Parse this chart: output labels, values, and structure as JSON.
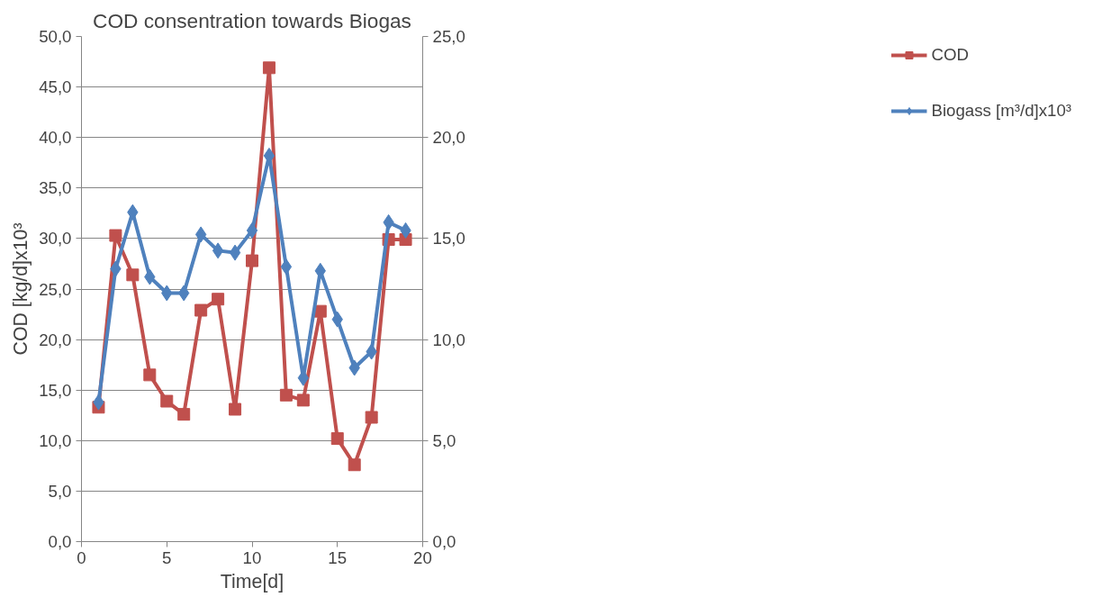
{
  "chart_data": {
    "type": "line",
    "title": "COD consentration towards Biogas",
    "xlabel": "Time[d]",
    "ylabel": "COD [kg/d]x10³",
    "x": [
      1,
      2,
      3,
      4,
      5,
      6,
      7,
      8,
      9,
      10,
      11,
      12,
      13,
      14,
      15,
      16,
      17,
      18,
      19
    ],
    "series": [
      {
        "name": "COD",
        "color": "#c0504d",
        "marker": "square",
        "values": [
          13.3,
          30.3,
          26.4,
          16.5,
          13.9,
          12.6,
          22.9,
          24.0,
          13.1,
          27.8,
          46.9,
          14.5,
          14.0,
          22.8,
          10.2,
          7.6,
          12.3,
          29.9,
          29.9
        ]
      },
      {
        "name": "Biogass [m³/d]x10³",
        "color": "#4f81bd",
        "marker": "diamond",
        "axis": "y2",
        "values": [
          6.9,
          13.5,
          16.3,
          13.1,
          12.3,
          12.3,
          15.2,
          14.4,
          14.3,
          15.4,
          19.1,
          13.6,
          8.1,
          13.4,
          11.0,
          8.6,
          9.4,
          15.8,
          15.4
        ]
      }
    ],
    "xlim": [
      0,
      20
    ],
    "xticks": [
      0,
      5,
      10,
      15,
      20
    ],
    "ylim": [
      0,
      50
    ],
    "yticks": [
      {
        "value": 0,
        "label": "0,0"
      },
      {
        "value": 5,
        "label": "5,0"
      },
      {
        "value": 10,
        "label": "10,0"
      },
      {
        "value": 15,
        "label": "15,0"
      },
      {
        "value": 20,
        "label": "20,0"
      },
      {
        "value": 25,
        "label": "25,0"
      },
      {
        "value": 30,
        "label": "30,0"
      },
      {
        "value": 35,
        "label": "35,0"
      },
      {
        "value": 40,
        "label": "40,0"
      },
      {
        "value": 45,
        "label": "45,0"
      },
      {
        "value": 50,
        "label": "50,0"
      }
    ],
    "y2lim": [
      0,
      25
    ],
    "y2ticks": [
      {
        "value": 0,
        "label": "0,0"
      },
      {
        "value": 5,
        "label": "5,0"
      },
      {
        "value": 10,
        "label": "10,0"
      },
      {
        "value": 15,
        "label": "15,0"
      },
      {
        "value": 20,
        "label": "20,0"
      },
      {
        "value": 25,
        "label": "25,0"
      }
    ],
    "grid": "y",
    "legend": "right",
    "line_style": "solid"
  }
}
